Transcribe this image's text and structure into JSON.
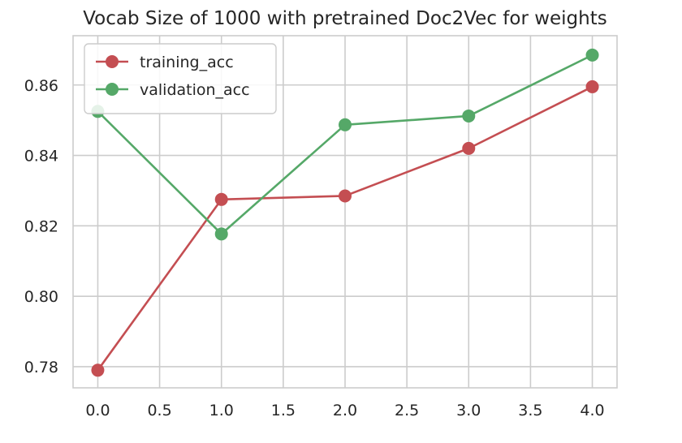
{
  "chart_data": {
    "type": "line",
    "title": "Vocab Size of 1000 with pretrained Doc2Vec for weights",
    "xlabel": "",
    "ylabel": "",
    "x": [
      0,
      1,
      2,
      3,
      4
    ],
    "xlim": [
      -0.2,
      4.2
    ],
    "ylim": [
      0.774,
      0.874
    ],
    "xticks": [
      0.0,
      0.5,
      1.0,
      1.5,
      2.0,
      2.5,
      3.0,
      3.5,
      4.0
    ],
    "xtick_labels": [
      "0.0",
      "0.5",
      "1.0",
      "1.5",
      "2.0",
      "2.5",
      "3.0",
      "3.5",
      "4.0"
    ],
    "yticks": [
      0.78,
      0.8,
      0.82,
      0.84,
      0.86
    ],
    "ytick_labels": [
      "0.78",
      "0.80",
      "0.82",
      "0.84",
      "0.86"
    ],
    "grid": true,
    "legend_position": "top-left",
    "series": [
      {
        "name": "training_acc",
        "color": "#c44e52",
        "marker": "circle",
        "values": [
          0.779,
          0.8275,
          0.8285,
          0.842,
          0.8595
        ]
      },
      {
        "name": "validation_acc",
        "color": "#55a868",
        "marker": "circle",
        "values": [
          0.8525,
          0.8177,
          0.8487,
          0.8512,
          0.8685
        ]
      }
    ]
  }
}
